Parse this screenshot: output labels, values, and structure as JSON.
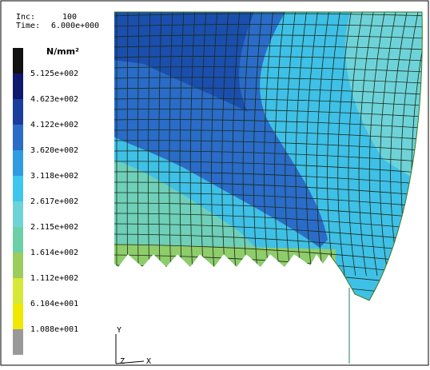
{
  "header": {
    "inc_label": "Inc:",
    "inc_value": "100",
    "time_label": "Time:",
    "time_value": "6.000e+000"
  },
  "legend": {
    "unit": "N/mm²",
    "labels": [
      "5.125e+002",
      "4.623e+002",
      "4.122e+002",
      "3.620e+002",
      "3.118e+002",
      "2.617e+002",
      "2.115e+002",
      "1.614e+002",
      "1.112e+002",
      "6.104e+001",
      "1.088e+001"
    ]
  },
  "axes": {
    "y": "Y",
    "z": "Z",
    "x": "X"
  }
}
